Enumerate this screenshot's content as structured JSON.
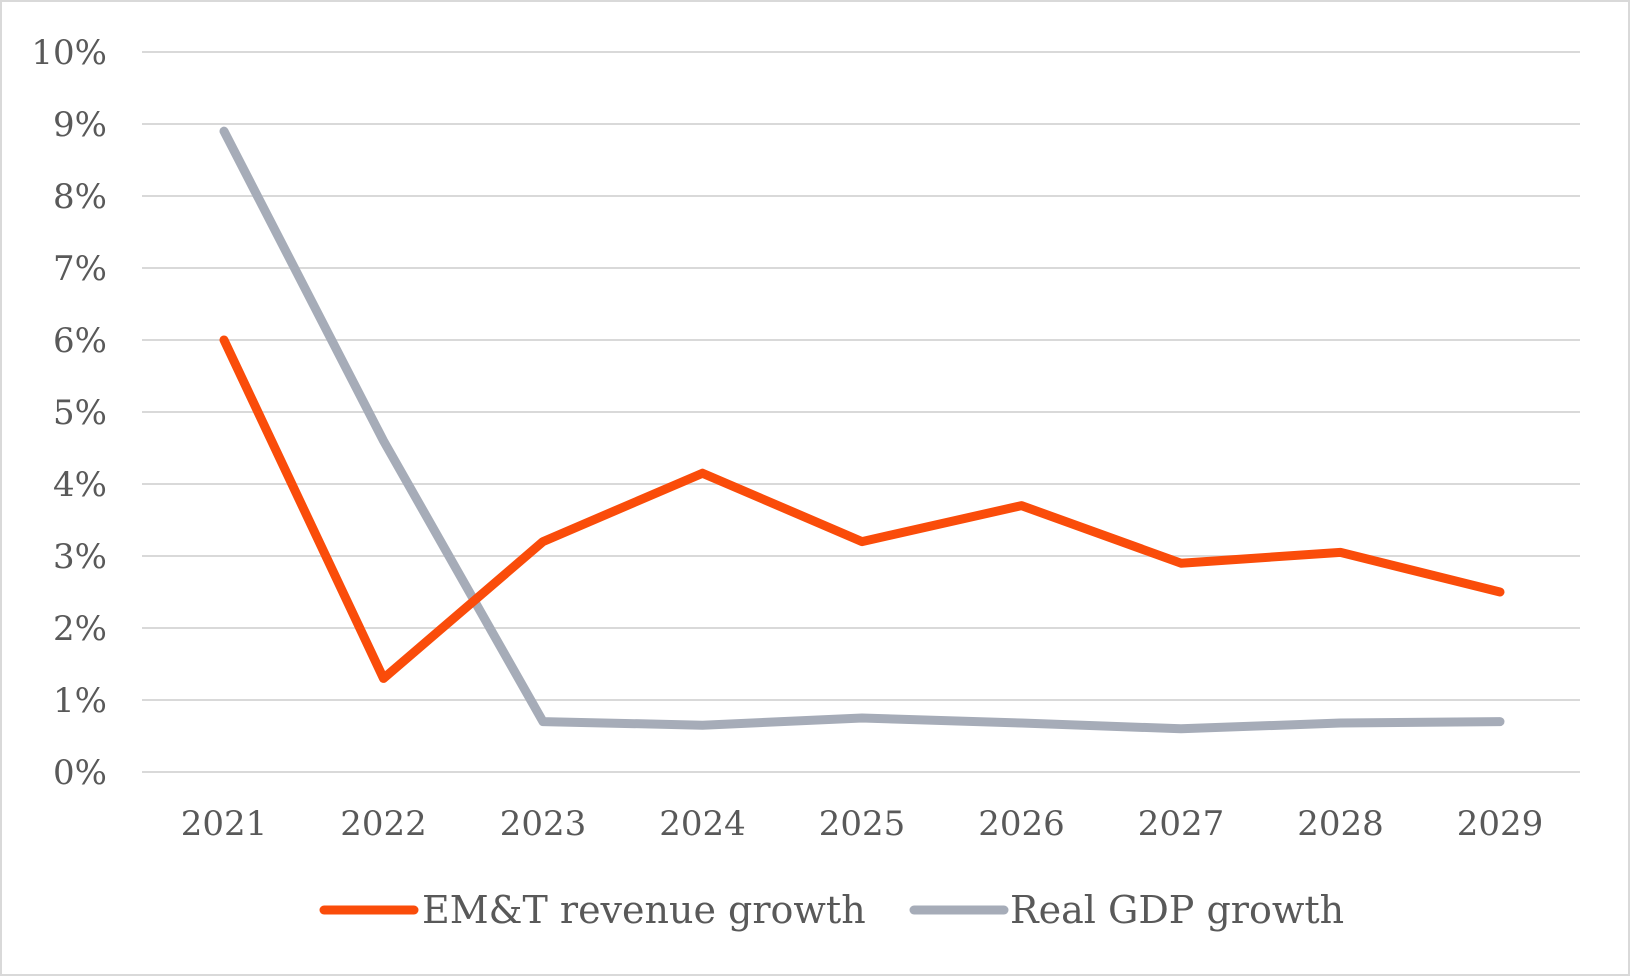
{
  "chart_data": {
    "type": "line",
    "categories": [
      "2021",
      "2022",
      "2023",
      "2024",
      "2025",
      "2026",
      "2027",
      "2028",
      "2029"
    ],
    "y_tick_labels": [
      "0%",
      "1%",
      "2%",
      "3%",
      "4%",
      "5%",
      "6%",
      "7%",
      "8%",
      "9%",
      "10%"
    ],
    "ylim": [
      0,
      10
    ],
    "y_unit": "%",
    "grid": true,
    "legend_position": "bottom",
    "series": [
      {
        "name": "EM&T revenue growth",
        "color": "#fa4c0a",
        "values": [
          6.0,
          1.3,
          3.2,
          4.15,
          3.2,
          3.7,
          2.9,
          3.05,
          2.5
        ]
      },
      {
        "name": "Real GDP growth",
        "color": "#a6acb8",
        "values": [
          8.9,
          4.6,
          0.7,
          0.65,
          0.75,
          0.68,
          0.6,
          0.68,
          0.7
        ]
      }
    ],
    "gridline_color": "#d9d9d9",
    "text_color": "#595959"
  }
}
